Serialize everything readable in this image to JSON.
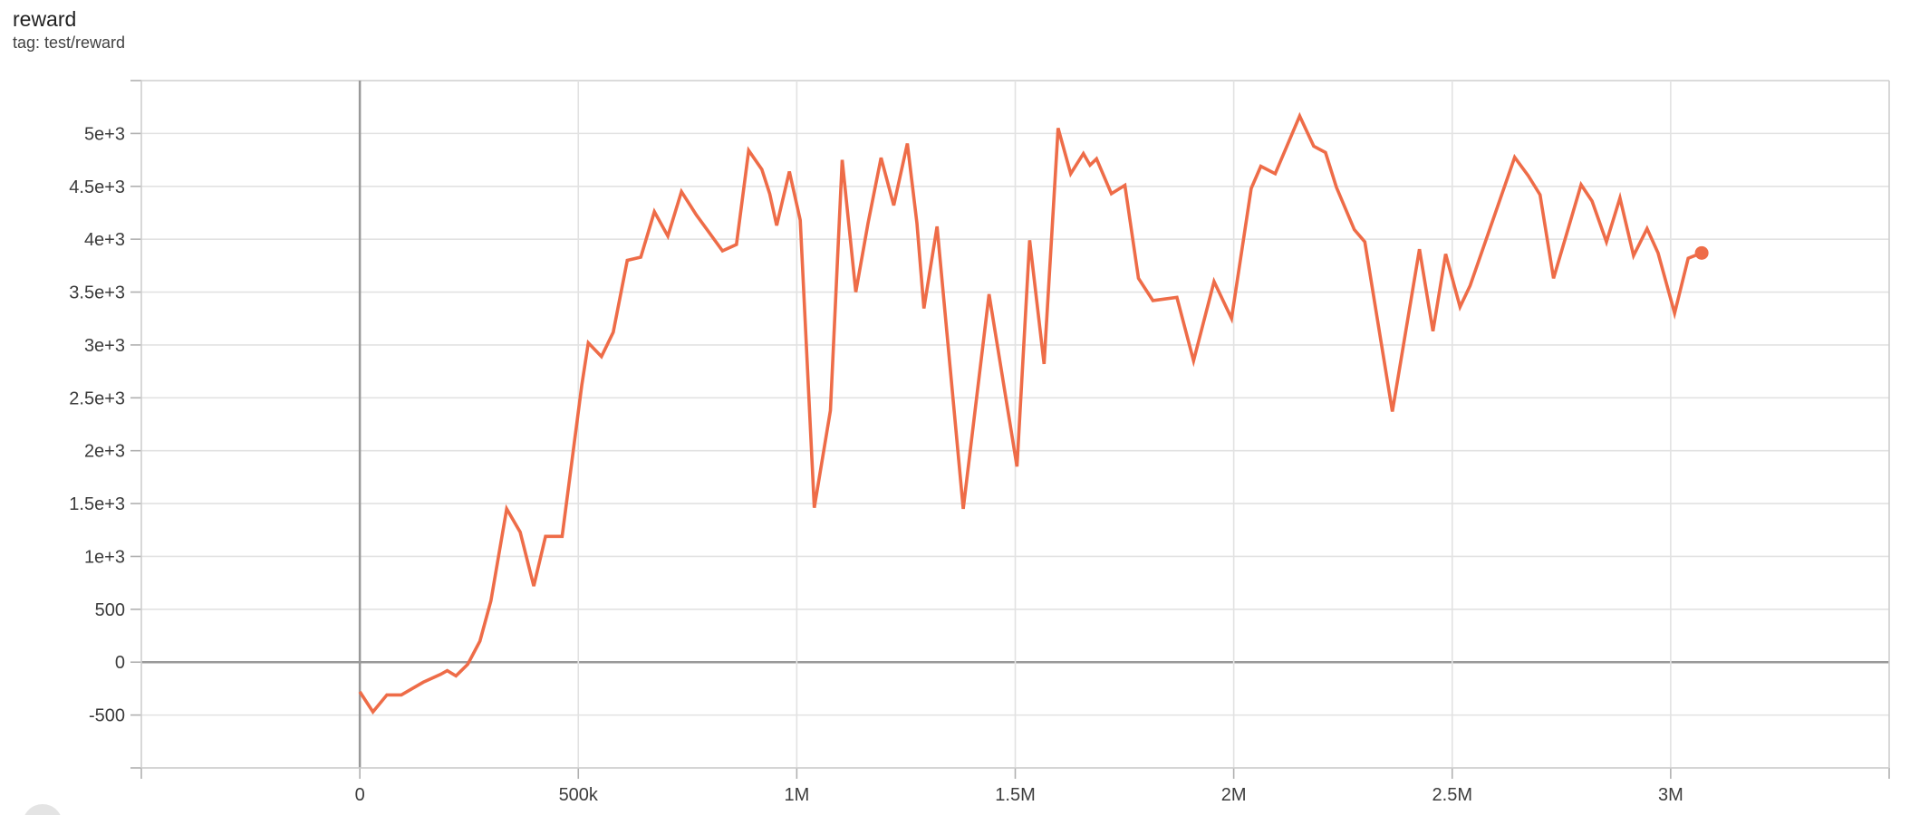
{
  "header": {
    "title": "reward",
    "tag": "tag: test/reward"
  },
  "colors": {
    "series": "#ee6c48",
    "grid": "#e2e2e2",
    "boundary": "#cfcfcf",
    "zero_line": "#999999",
    "tick": "#b0b0b0",
    "tick_label": "#3c3c3c",
    "title": "#212121",
    "button_peek": "#e4e4e4"
  },
  "chart_data": {
    "type": "line",
    "title": "reward",
    "subtitle": "tag: test/reward",
    "xlabel": "",
    "ylabel": "",
    "xlim": [
      -500000,
      3500000
    ],
    "ylim": [
      -1000,
      5500
    ],
    "grid": "on",
    "legend": "none",
    "x_ticks": [
      {
        "v": -500000,
        "label": ""
      },
      {
        "v": 0,
        "label": "0"
      },
      {
        "v": 500000,
        "label": "500k"
      },
      {
        "v": 1000000,
        "label": "1M"
      },
      {
        "v": 1500000,
        "label": "1.5M"
      },
      {
        "v": 2000000,
        "label": "2M"
      },
      {
        "v": 2500000,
        "label": "2.5M"
      },
      {
        "v": 3000000,
        "label": "3M"
      },
      {
        "v": 3500000,
        "label": ""
      }
    ],
    "y_ticks": [
      {
        "v": -1000,
        "label": ""
      },
      {
        "v": -500,
        "label": "-500"
      },
      {
        "v": 0,
        "label": "0"
      },
      {
        "v": 500,
        "label": "500"
      },
      {
        "v": 1000,
        "label": "1e+3"
      },
      {
        "v": 1500,
        "label": "1.5e+3"
      },
      {
        "v": 2000,
        "label": "2e+3"
      },
      {
        "v": 2500,
        "label": "2.5e+3"
      },
      {
        "v": 3000,
        "label": "3e+3"
      },
      {
        "v": 3500,
        "label": "3.5e+3"
      },
      {
        "v": 4000,
        "label": "4e+3"
      },
      {
        "v": 4500,
        "label": "4.5e+3"
      },
      {
        "v": 5000,
        "label": "5e+3"
      },
      {
        "v": 5500,
        "label": ""
      }
    ],
    "series": [
      {
        "name": "test/reward",
        "color": "#ee6c48",
        "end_marker": true,
        "points": [
          [
            0,
            -280
          ],
          [
            30000,
            -470
          ],
          [
            62000,
            -310
          ],
          [
            95000,
            -310
          ],
          [
            145000,
            -190
          ],
          [
            185000,
            -115
          ],
          [
            200000,
            -80
          ],
          [
            220000,
            -130
          ],
          [
            247000,
            -20
          ],
          [
            275000,
            200
          ],
          [
            300000,
            580
          ],
          [
            336000,
            1450
          ],
          [
            367000,
            1230
          ],
          [
            398000,
            720
          ],
          [
            425000,
            1190
          ],
          [
            463000,
            1190
          ],
          [
            508000,
            2620
          ],
          [
            523000,
            3020
          ],
          [
            553000,
            2890
          ],
          [
            580000,
            3120
          ],
          [
            612000,
            3800
          ],
          [
            643000,
            3830
          ],
          [
            674000,
            4260
          ],
          [
            705000,
            4030
          ],
          [
            736000,
            4450
          ],
          [
            770000,
            4230
          ],
          [
            830000,
            3890
          ],
          [
            862000,
            3950
          ],
          [
            890000,
            4840
          ],
          [
            920000,
            4660
          ],
          [
            938000,
            4430
          ],
          [
            954000,
            4130
          ],
          [
            983000,
            4640
          ],
          [
            1008000,
            4180
          ],
          [
            1040000,
            1460
          ],
          [
            1077000,
            2380
          ],
          [
            1104000,
            4750
          ],
          [
            1135000,
            3500
          ],
          [
            1163000,
            4150
          ],
          [
            1193000,
            4770
          ],
          [
            1222000,
            4320
          ],
          [
            1253000,
            4905
          ],
          [
            1275000,
            4150
          ],
          [
            1291000,
            3345
          ],
          [
            1321000,
            4120
          ],
          [
            1381000,
            1450
          ],
          [
            1440000,
            3480
          ],
          [
            1504000,
            1850
          ],
          [
            1533000,
            3990
          ],
          [
            1566000,
            2820
          ],
          [
            1598000,
            5050
          ],
          [
            1627000,
            4620
          ],
          [
            1656000,
            4810
          ],
          [
            1671000,
            4700
          ],
          [
            1686000,
            4760
          ],
          [
            1720000,
            4430
          ],
          [
            1751000,
            4510
          ],
          [
            1782000,
            3630
          ],
          [
            1815000,
            3420
          ],
          [
            1870000,
            3450
          ],
          [
            1908000,
            2850
          ],
          [
            1955000,
            3600
          ],
          [
            1995000,
            3250
          ],
          [
            2040000,
            4480
          ],
          [
            2062000,
            4690
          ],
          [
            2095000,
            4620
          ],
          [
            2151000,
            5165
          ],
          [
            2183000,
            4880
          ],
          [
            2210000,
            4820
          ],
          [
            2235000,
            4490
          ],
          [
            2276000,
            4090
          ],
          [
            2300000,
            3975
          ],
          [
            2363000,
            2370
          ],
          [
            2425000,
            3905
          ],
          [
            2456000,
            3130
          ],
          [
            2485000,
            3860
          ],
          [
            2518000,
            3360
          ],
          [
            2541000,
            3560
          ],
          [
            2643000,
            4775
          ],
          [
            2674000,
            4600
          ],
          [
            2701000,
            4420
          ],
          [
            2732000,
            3630
          ],
          [
            2795000,
            4515
          ],
          [
            2820000,
            4360
          ],
          [
            2853000,
            3975
          ],
          [
            2884000,
            4390
          ],
          [
            2915000,
            3845
          ],
          [
            2946000,
            4100
          ],
          [
            2971000,
            3870
          ],
          [
            3009000,
            3300
          ],
          [
            3040000,
            3820
          ],
          [
            3071000,
            3870
          ]
        ]
      }
    ]
  }
}
